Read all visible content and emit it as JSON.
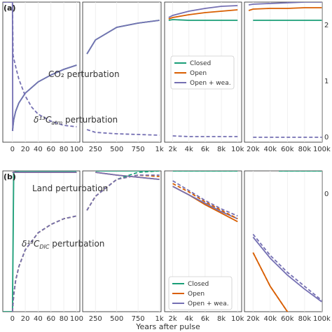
{
  "chart_data": {
    "type": "line",
    "xlabel": "Years after pulse",
    "colors": {
      "Closed": "#1a9e77",
      "Open": "#d95f02",
      "Open + wea.": "#7570b3"
    },
    "segments": [
      {
        "xlim": [
          -15,
          105
        ],
        "ticks": [
          0,
          20,
          40,
          60,
          80,
          100
        ],
        "tick_labels": [
          "0",
          "20",
          "40",
          "60",
          "80",
          "100"
        ]
      },
      {
        "xlim": [
          100,
          1020
        ],
        "ticks": [
          250,
          500,
          750,
          1000
        ],
        "tick_labels": [
          "250",
          "500",
          "750",
          "1k"
        ]
      },
      {
        "xlim": [
          1000,
          10500
        ],
        "ticks": [
          2000,
          4000,
          6000,
          8000,
          10000
        ],
        "tick_labels": [
          "2k",
          "4k",
          "6k",
          "8k",
          "10k"
        ]
      },
      {
        "xlim": [
          10000,
          100500
        ],
        "ticks": [
          20000,
          40000,
          60000,
          80000,
          100000
        ],
        "tick_labels": [
          "20k",
          "40k",
          "60k",
          "80k",
          "100k"
        ]
      }
    ],
    "panels": [
      {
        "label": "(a)",
        "ylim": [
          0,
          1
        ],
        "annotations": [
          "CO₂ perturbation",
          "δ¹³C",
          "atm",
          " perturbation"
        ],
        "legend": {
          "position": "right",
          "entries": [
            "Closed",
            "Open",
            "Open + wea."
          ]
        },
        "right_tick_labels": [
          "2",
          "1",
          "0"
        ],
        "series": [
          {
            "name": "Closed",
            "style": "solid",
            "x": [
              0,
              2,
              5,
              10,
              20,
              40,
              60,
              80,
              100,
              150,
              250,
              500,
              750,
              1000,
              1500,
              2000,
              4000,
              6000,
              8000,
              10000,
              20000,
              40000,
              60000,
              80000,
              100000
            ],
            "y": [
              0.08,
              0.16,
              0.22,
              0.28,
              0.35,
              0.43,
              0.48,
              0.52,
              0.55,
              0.63,
              0.73,
              0.82,
              0.85,
              0.87,
              0.87,
              0.875,
              0.87,
              0.87,
              0.87,
              0.87,
              0.87,
              0.87,
              0.87,
              0.87,
              0.87
            ]
          },
          {
            "name": "Open",
            "style": "solid",
            "x": [
              1000,
              1500,
              2000,
              4000,
              6000,
              8000,
              10000,
              15000,
              20000,
              40000,
              60000,
              80000,
              100000
            ],
            "y": [
              0.87,
              0.88,
              0.89,
              0.91,
              0.925,
              0.935,
              0.945,
              0.94,
              0.95,
              0.955,
              0.955,
              0.96,
              0.96
            ]
          },
          {
            "name": "Open + wea.",
            "style": "solid",
            "x": [
              0,
              2,
              5,
              10,
              20,
              40,
              60,
              80,
              100,
              150,
              250,
              500,
              750,
              1000,
              1500,
              2000,
              4000,
              6000,
              8000,
              10000,
              15000,
              20000,
              40000,
              60000,
              80000,
              100000
            ],
            "y": [
              0.08,
              0.16,
              0.22,
              0.28,
              0.35,
              0.43,
              0.48,
              0.52,
              0.55,
              0.63,
              0.73,
              0.82,
              0.85,
              0.87,
              0.89,
              0.905,
              0.935,
              0.955,
              0.97,
              0.975,
              0.98,
              0.985,
              0.99,
              0.995,
              1.0,
              1.0
            ]
          },
          {
            "name": "Open + wea. perturbation",
            "style": "solid",
            "x": [
              -15,
              -0.5,
              0,
              0.5
            ],
            "y": [
              1.0,
              1.0,
              1.0,
              0.08
            ]
          },
          {
            "name": "δ13C atm",
            "style": "dashed",
            "x": [
              -15,
              -0.5,
              0,
              1,
              3,
              6,
              10,
              20,
              30,
              40,
              60,
              80,
              100,
              150,
              250,
              500,
              750,
              1000,
              2000,
              4000,
              6000,
              8000,
              10000,
              20000,
              40000,
              60000,
              80000,
              100000
            ],
            "y": [
              1.0,
              1.0,
              1.0,
              0.62,
              0.58,
              0.52,
              0.45,
              0.33,
              0.25,
              0.2,
              0.15,
              0.12,
              0.11,
              0.09,
              0.07,
              0.06,
              0.055,
              0.05,
              0.045,
              0.04,
              0.04,
              0.04,
              0.04,
              0.035,
              0.035,
              0.035,
              0.035,
              0.035
            ]
          }
        ]
      },
      {
        "label": "(b)",
        "ylim": [
          0,
          1
        ],
        "annotations": [
          "Land perturbation",
          "δ¹³C",
          "DIC",
          " perturbation"
        ],
        "legend": {
          "position": "bottom-right",
          "entries": [
            "Closed",
            "Open",
            "Open + wea."
          ]
        },
        "right_tick_labels": [
          "0",
          "",
          "",
          "",
          "",
          "",
          "",
          "",
          ""
        ],
        "series": [
          {
            "name": "Closed",
            "style": "solid",
            "x": [
              -15,
              -0.5,
              0,
              2,
              10,
              50,
              100,
              250,
              500,
              750,
              1000,
              2000,
              5000,
              10000,
              50000,
              100000
            ],
            "y": [
              0.0,
              0.0,
              0.0,
              0.99,
              1.0,
              1.0,
              1.0,
              1.0,
              1.0,
              1.0,
              1.0,
              1.0,
              1.0,
              1.0,
              1.0,
              1.0
            ]
          },
          {
            "name": "Open",
            "style": "solid",
            "x": [
              0,
              2,
              10,
              50,
              100,
              250,
              500,
              750,
              1000,
              2000,
              4000,
              6000,
              8000,
              10000,
              20000,
              40000,
              60000,
              80000,
              100000
            ],
            "y": [
              0.99,
              0.99,
              0.99,
              0.99,
              0.99,
              0.99,
              0.97,
              0.955,
              0.94,
              0.89,
              0.83,
              0.76,
              0.7,
              0.64,
              0.42,
              0.18,
              0.0,
              -0.1,
              -0.2
            ]
          },
          {
            "name": "Open + wea.",
            "style": "solid",
            "x": [
              0,
              2,
              10,
              50,
              100,
              250,
              500,
              750,
              1000,
              2000,
              4000,
              6000,
              8000,
              10000,
              20000,
              40000,
              60000,
              80000,
              100000
            ],
            "y": [
              0.99,
              0.99,
              0.99,
              0.99,
              0.99,
              0.99,
              0.97,
              0.955,
              0.94,
              0.89,
              0.83,
              0.77,
              0.71,
              0.66,
              0.53,
              0.38,
              0.26,
              0.16,
              0.07
            ]
          },
          {
            "name": "δ13C DIC Closed",
            "style": "dashed",
            "x": [
              0,
              2,
              5,
              10,
              20,
              40,
              60,
              80,
              100,
              150,
              250,
              500,
              750,
              1000,
              2000,
              5000,
              10000,
              50000,
              100000
            ],
            "y": [
              0.0,
              0.12,
              0.22,
              0.32,
              0.44,
              0.56,
              0.62,
              0.66,
              0.68,
              0.72,
              0.82,
              0.94,
              0.99,
              1.02,
              1.02,
              1.02,
              1.02,
              1.02,
              1.02
            ]
          },
          {
            "name": "δ13C DIC Open",
            "style": "dashed",
            "x": [
              0,
              2,
              5,
              10,
              20,
              40,
              60,
              80,
              100,
              150,
              250,
              500,
              750,
              1000,
              2000,
              4000,
              6000,
              8000,
              10000,
              20000,
              40000,
              60000,
              80000,
              100000
            ],
            "y": [
              0.0,
              0.12,
              0.22,
              0.32,
              0.44,
              0.56,
              0.62,
              0.66,
              0.68,
              0.72,
              0.82,
              0.94,
              0.97,
              0.96,
              0.91,
              0.85,
              0.78,
              0.72,
              0.66,
              0.42,
              0.18,
              0.0,
              -0.1,
              -0.2
            ]
          },
          {
            "name": "δ13C DIC Open + wea.",
            "style": "dashed",
            "x": [
              0,
              2,
              5,
              10,
              20,
              40,
              60,
              80,
              100,
              150,
              250,
              500,
              750,
              1000,
              2000,
              4000,
              6000,
              8000,
              10000,
              20000,
              40000,
              60000,
              80000,
              100000
            ],
            "y": [
              0.0,
              0.12,
              0.22,
              0.32,
              0.44,
              0.56,
              0.62,
              0.66,
              0.68,
              0.72,
              0.82,
              0.94,
              0.97,
              0.97,
              0.93,
              0.86,
              0.79,
              0.73,
              0.68,
              0.55,
              0.4,
              0.28,
              0.18,
              0.08
            ]
          }
        ]
      }
    ]
  }
}
